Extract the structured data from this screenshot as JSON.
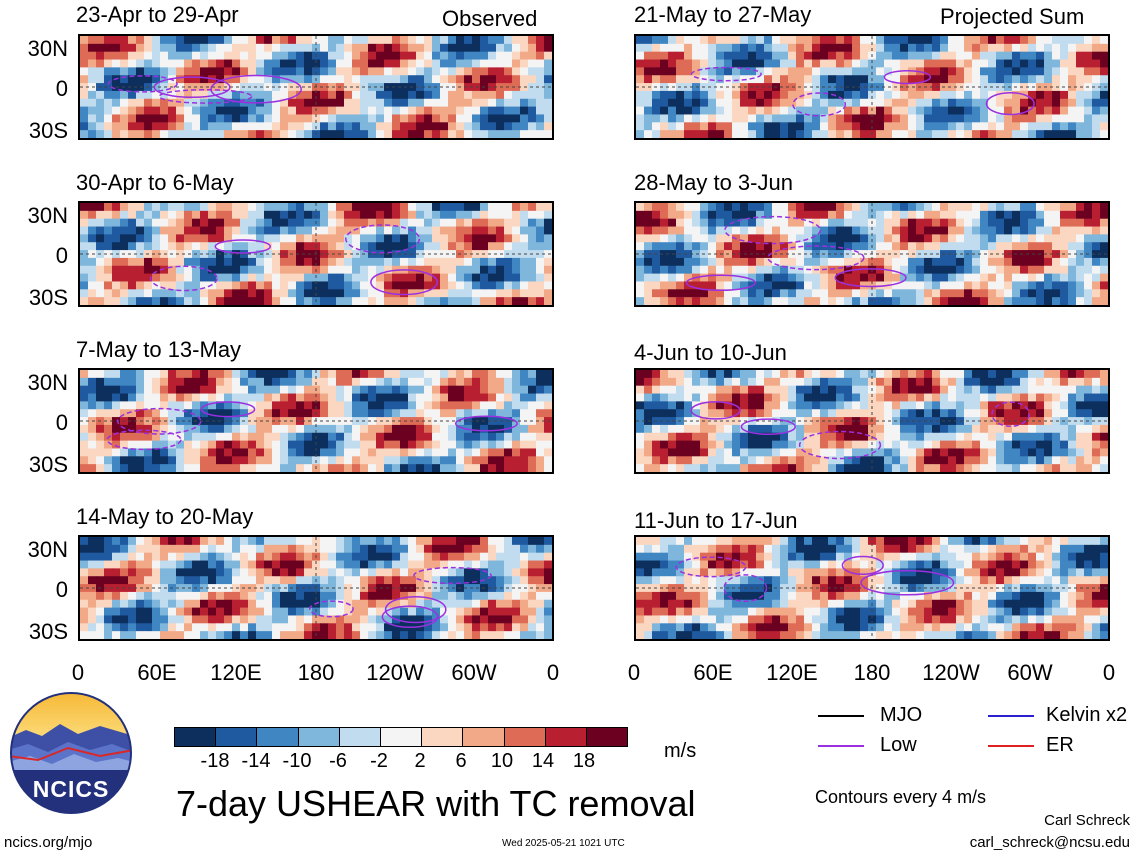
{
  "panels_left": [
    {
      "title": "23-Apr to 29-Apr",
      "tag": "Observed"
    },
    {
      "title": "30-Apr to 6-May",
      "tag": ""
    },
    {
      "title": "7-May to 13-May",
      "tag": ""
    },
    {
      "title": "14-May to 20-May",
      "tag": ""
    }
  ],
  "panels_right": [
    {
      "title": "21-May to 27-May",
      "tag": "Projected Sum"
    },
    {
      "title": "28-May to 3-Jun",
      "tag": ""
    },
    {
      "title": "4-Jun to 10-Jun",
      "tag": ""
    },
    {
      "title": "11-Jun to 17-Jun",
      "tag": ""
    }
  ],
  "lat_labels": [
    "30N",
    "0",
    "30S"
  ],
  "lon_labels": [
    "0",
    "60E",
    "120E",
    "180",
    "120W",
    "60W",
    "0"
  ],
  "colorbar": {
    "colors": [
      "#0c2f5e",
      "#1f5aa0",
      "#3f86c2",
      "#7fb6db",
      "#c0dcee",
      "#f4f4f4",
      "#fbd6c0",
      "#f2a988",
      "#de6b55",
      "#b82032",
      "#6b0020"
    ],
    "labels": [
      "-18",
      "-14",
      "-10",
      "-6",
      "-2",
      "2",
      "6",
      "10",
      "14",
      "18"
    ],
    "units": "m/s"
  },
  "legend": [
    {
      "label": "MJO",
      "color": "#000000"
    },
    {
      "label": "Kelvin x2",
      "color": "#2b1fd0"
    },
    {
      "label": "Low",
      "color": "#9b30e0"
    },
    {
      "label": "ER",
      "color": "#e02020"
    }
  ],
  "contour_note": "Contours every 4 m/s",
  "main_title": "7-day USHEAR with TC removal",
  "logo_text": "NCICS",
  "footer_left": "ncics.org/mjo",
  "footer_date": "Wed 2025-05-21 1021 UTC",
  "author": "Carl Schreck",
  "email": "carl_schreck@ncsu.edu"
}
